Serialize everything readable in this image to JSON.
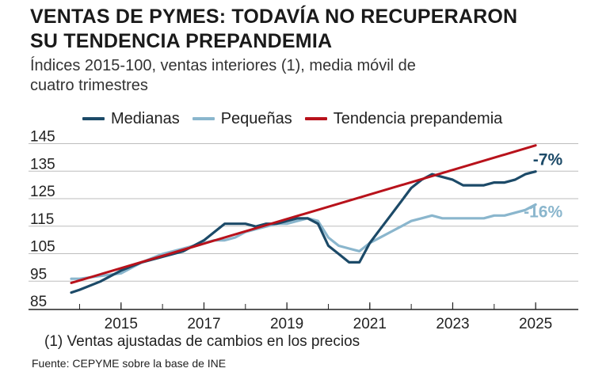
{
  "header": {
    "title_line1": "VENTAS DE PYMES: TODAVÍA NO RECUPERARON",
    "title_line2": "SU TENDENCIA PREPANDEMIA",
    "subtitle_line1": "Índices 2015-100, ventas interiores (1), media móvil de",
    "subtitle_line2": "cuatro trimestres"
  },
  "colors": {
    "medianas": "#1c4a68",
    "pequenas": "#8ab6cd",
    "tendencia": "#b8121b"
  },
  "legend": {
    "medianas": "Medianas",
    "pequenas": "Pequeñas",
    "tendencia": "Tendencia prepandemia"
  },
  "footer": {
    "footnote": "(1) Ventas ajustadas de cambios en los precios",
    "source": "Fuente: CEPYME sobre la base de INE"
  },
  "chart_data": {
    "type": "line",
    "title": "VENTAS DE PYMES: TODAVÍA NO RECUPERARON SU TENDENCIA PREPANDEMIA",
    "subtitle": "Índices 2015-100, ventas interiores (1), media móvil de cuatro trimestres",
    "xlabel": "",
    "ylabel": "",
    "xlim": [
      2013.8,
      2025.8
    ],
    "ylim": [
      85,
      150
    ],
    "y_ticks": [
      "85",
      "95",
      "105",
      "115",
      "125",
      "135",
      "145"
    ],
    "y_tick_values": [
      85,
      95,
      105,
      115,
      125,
      135,
      145
    ],
    "x_ticks": [
      "2015",
      "2017",
      "2019",
      "2021",
      "2023",
      "2025"
    ],
    "x_tick_values": [
      2015,
      2017,
      2019,
      2021,
      2023,
      2025
    ],
    "grid": "horizontal",
    "legend_position": "top",
    "series": [
      {
        "name": "Medianas",
        "x": [
          2013.8,
          2014.0,
          2014.5,
          2015.0,
          2015.5,
          2016.0,
          2016.5,
          2016.75,
          2017.0,
          2017.25,
          2017.5,
          2017.75,
          2018.0,
          2018.25,
          2018.5,
          2018.75,
          2019.0,
          2019.25,
          2019.5,
          2019.75,
          2020.0,
          2020.25,
          2020.5,
          2020.75,
          2021.0,
          2021.25,
          2021.5,
          2021.75,
          2022.0,
          2022.25,
          2022.5,
          2022.75,
          2023.0,
          2023.25,
          2023.5,
          2023.75,
          2024.0,
          2024.25,
          2024.5,
          2024.75,
          2025.0
        ],
        "values": [
          88,
          89,
          92,
          96,
          99,
          101,
          103,
          105,
          107,
          110,
          113,
          113,
          113,
          112,
          113,
          113,
          114,
          115,
          115,
          113,
          105,
          102,
          99,
          99,
          106,
          111,
          116,
          121,
          126,
          129,
          131,
          130,
          129,
          127,
          127,
          127,
          128,
          128,
          129,
          131,
          132
        ],
        "color": "#1c4a68"
      },
      {
        "name": "Pequeñas",
        "x": [
          2013.8,
          2014.0,
          2014.5,
          2015.0,
          2015.5,
          2016.0,
          2016.5,
          2017.0,
          2017.25,
          2017.5,
          2017.75,
          2018.0,
          2018.25,
          2018.5,
          2018.75,
          2019.0,
          2019.25,
          2019.5,
          2019.75,
          2020.0,
          2020.25,
          2020.5,
          2020.75,
          2021.0,
          2021.25,
          2021.5,
          2021.75,
          2022.0,
          2022.25,
          2022.5,
          2022.75,
          2023.0,
          2023.25,
          2023.5,
          2023.75,
          2024.0,
          2024.25,
          2024.5,
          2024.75,
          2025.0
        ],
        "values": [
          93,
          93,
          94,
          95,
          99,
          102,
          104,
          106,
          107,
          107,
          108,
          110,
          111,
          112,
          113,
          113,
          114,
          115,
          114,
          108,
          105,
          104,
          103,
          106,
          108,
          110,
          112,
          114,
          115,
          116,
          115,
          115,
          115,
          115,
          115,
          116,
          116,
          117,
          118,
          120
        ],
        "color": "#8ab6cd"
      },
      {
        "name": "Tendencia prepandemia",
        "x": [
          2013.8,
          2025.0
        ],
        "values": [
          91.5,
          141.5
        ],
        "color": "#b8121b"
      }
    ],
    "annotations": [
      {
        "series": "Medianas",
        "text": "-7%"
      },
      {
        "series": "Pequeñas",
        "text": "-16%"
      }
    ]
  }
}
